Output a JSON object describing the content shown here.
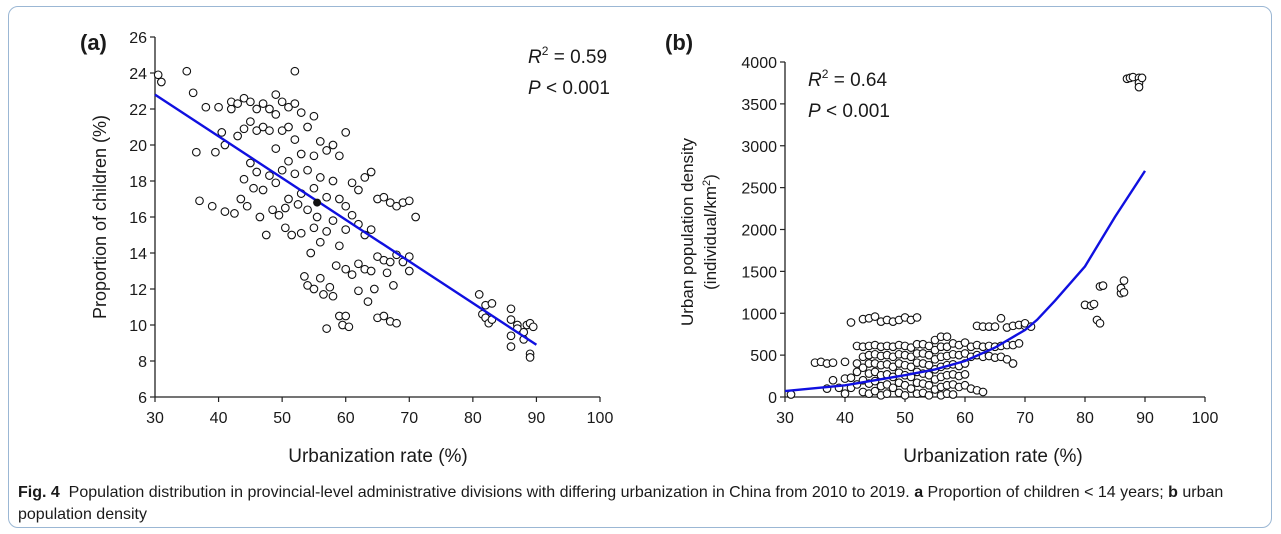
{
  "figure": {
    "caption_label": "Fig. 4",
    "caption_text_1": "Population distribution in provincial-level administrative divisions with differing urbanization in China from 2010 to 2019.",
    "caption_a_label": "a",
    "caption_a_text": "Proportion of children < 14 years;",
    "caption_b_label": "b",
    "caption_b_text": "urban population density"
  },
  "chart_data": [
    {
      "panel_label": "(a)",
      "type": "scatter",
      "xlabel": "Urbanization rate (%)",
      "ylabel": "Proportion of children (%)",
      "xlim": [
        30,
        100
      ],
      "ylim": [
        6,
        26
      ],
      "x_ticks": [
        30,
        40,
        50,
        60,
        70,
        80,
        90,
        100
      ],
      "y_ticks": [
        6,
        8,
        10,
        12,
        14,
        16,
        18,
        20,
        22,
        24,
        26
      ],
      "stat_r2_sym": "R",
      "stat_r2_sup": "2",
      "stat_r2_val": " = 0.59",
      "stat_p_sym": "P",
      "stat_p_val": " < 0.001",
      "fit_color": "#1010e0",
      "fit_line": [
        [
          30,
          22.8
        ],
        [
          90,
          8.9
        ]
      ],
      "highlight_point": [
        55.5,
        16.8
      ],
      "points": [
        [
          30.5,
          23.9
        ],
        [
          31,
          23.5
        ],
        [
          35,
          24.1
        ],
        [
          36,
          22.9
        ],
        [
          36.5,
          19.6
        ],
        [
          37,
          16.9
        ],
        [
          38,
          22.1
        ],
        [
          39,
          16.6
        ],
        [
          39.5,
          19.6
        ],
        [
          40,
          22.1
        ],
        [
          40.5,
          20.7
        ],
        [
          41,
          20.0
        ],
        [
          41,
          16.3
        ],
        [
          42,
          22.0
        ],
        [
          42,
          22.4
        ],
        [
          42.5,
          16.2
        ],
        [
          43,
          22.3
        ],
        [
          43,
          20.5
        ],
        [
          43.5,
          17.0
        ],
        [
          44,
          22.6
        ],
        [
          44,
          20.9
        ],
        [
          44,
          18.1
        ],
        [
          44.5,
          16.6
        ],
        [
          45,
          22.4
        ],
        [
          45,
          21.3
        ],
        [
          45,
          19.0
        ],
        [
          45.5,
          17.6
        ],
        [
          46,
          22.0
        ],
        [
          46,
          20.8
        ],
        [
          46,
          18.5
        ],
        [
          46.5,
          16.0
        ],
        [
          47,
          22.3
        ],
        [
          47,
          21.0
        ],
        [
          47,
          17.5
        ],
        [
          47.5,
          15.0
        ],
        [
          48,
          22.0
        ],
        [
          48,
          20.8
        ],
        [
          48,
          18.3
        ],
        [
          48.5,
          16.4
        ],
        [
          49,
          22.8
        ],
        [
          49,
          21.7
        ],
        [
          49,
          19.8
        ],
        [
          49,
          17.9
        ],
        [
          49.5,
          16.1
        ],
        [
          50,
          22.4
        ],
        [
          50,
          20.8
        ],
        [
          50,
          18.6
        ],
        [
          50.5,
          16.5
        ],
        [
          50.5,
          15.4
        ],
        [
          51,
          22.1
        ],
        [
          51,
          21.0
        ],
        [
          51,
          19.1
        ],
        [
          51,
          17.0
        ],
        [
          51.5,
          15.0
        ],
        [
          52,
          24.1
        ],
        [
          52,
          22.3
        ],
        [
          52,
          20.3
        ],
        [
          52,
          18.4
        ],
        [
          52.5,
          16.7
        ],
        [
          53,
          21.8
        ],
        [
          53,
          19.5
        ],
        [
          53,
          17.3
        ],
        [
          53,
          15.1
        ],
        [
          53.5,
          12.7
        ],
        [
          54,
          21.0
        ],
        [
          54,
          18.6
        ],
        [
          54,
          16.4
        ],
        [
          54,
          12.2
        ],
        [
          54.5,
          14.0
        ],
        [
          55,
          21.6
        ],
        [
          55,
          19.4
        ],
        [
          55,
          17.6
        ],
        [
          55,
          15.4
        ],
        [
          55,
          12.0
        ],
        [
          55.5,
          16.0
        ],
        [
          56,
          20.2
        ],
        [
          56,
          18.2
        ],
        [
          56,
          14.6
        ],
        [
          56,
          12.6
        ],
        [
          56.5,
          11.7
        ],
        [
          57,
          19.7
        ],
        [
          57,
          17.1
        ],
        [
          57,
          15.2
        ],
        [
          57,
          9.8
        ],
        [
          57.5,
          12.1
        ],
        [
          58,
          20.0
        ],
        [
          58,
          18.0
        ],
        [
          58,
          15.8
        ],
        [
          58,
          11.6
        ],
        [
          58.5,
          13.3
        ],
        [
          59,
          19.4
        ],
        [
          59,
          17.0
        ],
        [
          59,
          14.4
        ],
        [
          59,
          10.5
        ],
        [
          59.5,
          10.0
        ],
        [
          60,
          20.7
        ],
        [
          60,
          16.6
        ],
        [
          60,
          15.3
        ],
        [
          60,
          13.1
        ],
        [
          60,
          10.5
        ],
        [
          60.5,
          9.9
        ],
        [
          61,
          17.9
        ],
        [
          61,
          16.1
        ],
        [
          61,
          12.8
        ],
        [
          62,
          17.5
        ],
        [
          62,
          15.6
        ],
        [
          62,
          13.4
        ],
        [
          62,
          11.9
        ],
        [
          63,
          18.2
        ],
        [
          63,
          15.0
        ],
        [
          63,
          13.1
        ],
        [
          63.5,
          11.3
        ],
        [
          64,
          18.5
        ],
        [
          64,
          15.3
        ],
        [
          64,
          13.0
        ],
        [
          64.5,
          12.0
        ],
        [
          65,
          17.0
        ],
        [
          65,
          13.8
        ],
        [
          65,
          10.4
        ],
        [
          66,
          17.1
        ],
        [
          66,
          13.6
        ],
        [
          66,
          10.5
        ],
        [
          66.5,
          12.9
        ],
        [
          67,
          16.8
        ],
        [
          67,
          13.5
        ],
        [
          67,
          10.2
        ],
        [
          67.5,
          12.2
        ],
        [
          68,
          16.6
        ],
        [
          68,
          13.9
        ],
        [
          68,
          10.1
        ],
        [
          69,
          16.8
        ],
        [
          69,
          13.5
        ],
        [
          70,
          16.9
        ],
        [
          70,
          13.8
        ],
        [
          70,
          13.0
        ],
        [
          71,
          16.0
        ],
        [
          81,
          11.7
        ],
        [
          81.5,
          10.6
        ],
        [
          82,
          11.1
        ],
        [
          82,
          10.4
        ],
        [
          82.5,
          10.1
        ],
        [
          83,
          11.2
        ],
        [
          83,
          10.3
        ],
        [
          86,
          10.9
        ],
        [
          86,
          10.3
        ],
        [
          86,
          9.4
        ],
        [
          86,
          8.8
        ],
        [
          87,
          10.0
        ],
        [
          87,
          9.8
        ],
        [
          88,
          9.6
        ],
        [
          88,
          9.2
        ],
        [
          88.5,
          10.0
        ],
        [
          89,
          10.1
        ],
        [
          89,
          8.4
        ],
        [
          89,
          8.2
        ],
        [
          89.5,
          9.9
        ]
      ]
    },
    {
      "panel_label": "(b)",
      "type": "scatter",
      "xlabel": "Urbanization rate (%)",
      "ylabel_line1": "Urban population density",
      "ylabel_line2_pre": "(individual/km",
      "ylabel_line2_sup": "2",
      "ylabel_line2_post": ")",
      "xlim": [
        30,
        100
      ],
      "ylim": [
        0,
        4000
      ],
      "x_ticks": [
        30,
        40,
        50,
        60,
        70,
        80,
        90,
        100
      ],
      "y_ticks": [
        0,
        500,
        1000,
        1500,
        2000,
        2500,
        3000,
        3500,
        4000
      ],
      "stat_r2_sym": "R",
      "stat_r2_sup": "2",
      "stat_r2_val": " = 0.64",
      "stat_p_sym": "P",
      "stat_p_val": " < 0.001",
      "fit_color": "#1010e0",
      "fit_line": [
        [
          30,
          70
        ],
        [
          40,
          140
        ],
        [
          50,
          260
        ],
        [
          55,
          330
        ],
        [
          60,
          430
        ],
        [
          65,
          590
        ],
        [
          70,
          800
        ],
        [
          72,
          920
        ],
        [
          75,
          1150
        ],
        [
          80,
          1560
        ],
        [
          85,
          2150
        ],
        [
          90,
          2700
        ]
      ],
      "points": [
        [
          31,
          30
        ],
        [
          35,
          410
        ],
        [
          36,
          420
        ],
        [
          37,
          100
        ],
        [
          37,
          400
        ],
        [
          38,
          200
        ],
        [
          38,
          410
        ],
        [
          39,
          110
        ],
        [
          40,
          220
        ],
        [
          40,
          420
        ],
        [
          40,
          40
        ],
        [
          41,
          890
        ],
        [
          41,
          230
        ],
        [
          41,
          110
        ],
        [
          42,
          610
        ],
        [
          42,
          400
        ],
        [
          42,
          300
        ],
        [
          42,
          150
        ],
        [
          43,
          930
        ],
        [
          43,
          600
        ],
        [
          43,
          480
        ],
        [
          43,
          350
        ],
        [
          43,
          200
        ],
        [
          43,
          60
        ],
        [
          44,
          940
        ],
        [
          44,
          610
        ],
        [
          44,
          500
        ],
        [
          44,
          400
        ],
        [
          44,
          280
        ],
        [
          44,
          160
        ],
        [
          44,
          40
        ],
        [
          45,
          960
        ],
        [
          45,
          620
        ],
        [
          45,
          510
        ],
        [
          45,
          400
        ],
        [
          45,
          300
        ],
        [
          45,
          190
        ],
        [
          45,
          70
        ],
        [
          46,
          900
        ],
        [
          46,
          600
        ],
        [
          46,
          490
        ],
        [
          46,
          380
        ],
        [
          46,
          260
        ],
        [
          46,
          130
        ],
        [
          46,
          20
        ],
        [
          47,
          920
        ],
        [
          47,
          610
        ],
        [
          47,
          500
        ],
        [
          47,
          390
        ],
        [
          47,
          270
        ],
        [
          47,
          150
        ],
        [
          47,
          40
        ],
        [
          48,
          900
        ],
        [
          48,
          600
        ],
        [
          48,
          480
        ],
        [
          48,
          360
        ],
        [
          48,
          240
        ],
        [
          48,
          110
        ],
        [
          49,
          920
        ],
        [
          49,
          620
        ],
        [
          49,
          510
        ],
        [
          49,
          400
        ],
        [
          49,
          290
        ],
        [
          49,
          170
        ],
        [
          49,
          50
        ],
        [
          50,
          950
        ],
        [
          50,
          610
        ],
        [
          50,
          500
        ],
        [
          50,
          380
        ],
        [
          50,
          260
        ],
        [
          50,
          140
        ],
        [
          50,
          20
        ],
        [
          51,
          920
        ],
        [
          51,
          590
        ],
        [
          51,
          480
        ],
        [
          51,
          360
        ],
        [
          51,
          240
        ],
        [
          51,
          100
        ],
        [
          52,
          950
        ],
        [
          52,
          630
        ],
        [
          52,
          520
        ],
        [
          52,
          410
        ],
        [
          52,
          300
        ],
        [
          52,
          170
        ],
        [
          52,
          40
        ],
        [
          53,
          630
        ],
        [
          53,
          520
        ],
        [
          53,
          400
        ],
        [
          53,
          280
        ],
        [
          53,
          160
        ],
        [
          53,
          50
        ],
        [
          54,
          610
        ],
        [
          54,
          500
        ],
        [
          54,
          380
        ],
        [
          54,
          260
        ],
        [
          54,
          140
        ],
        [
          54,
          20
        ],
        [
          55,
          680
        ],
        [
          55,
          560
        ],
        [
          55,
          450
        ],
        [
          55,
          330
        ],
        [
          55,
          210
        ],
        [
          55,
          90
        ],
        [
          56,
          720
        ],
        [
          56,
          600
        ],
        [
          56,
          480
        ],
        [
          56,
          360
        ],
        [
          56,
          240
        ],
        [
          56,
          120
        ],
        [
          56,
          20
        ],
        [
          57,
          720
        ],
        [
          57,
          600
        ],
        [
          57,
          490
        ],
        [
          57,
          380
        ],
        [
          57,
          260
        ],
        [
          57,
          140
        ],
        [
          57,
          40
        ],
        [
          58,
          640
        ],
        [
          58,
          510
        ],
        [
          58,
          390
        ],
        [
          58,
          270
        ],
        [
          58,
          150
        ],
        [
          58,
          30
        ],
        [
          59,
          620
        ],
        [
          59,
          500
        ],
        [
          59,
          370
        ],
        [
          59,
          250
        ],
        [
          59,
          120
        ],
        [
          60,
          650
        ],
        [
          60,
          520
        ],
        [
          60,
          400
        ],
        [
          60,
          270
        ],
        [
          60,
          140
        ],
        [
          61,
          600
        ],
        [
          61,
          480
        ],
        [
          61,
          100
        ],
        [
          62,
          850
        ],
        [
          62,
          620
        ],
        [
          62,
          500
        ],
        [
          62,
          80
        ],
        [
          63,
          840
        ],
        [
          63,
          600
        ],
        [
          63,
          480
        ],
        [
          63,
          60
        ],
        [
          64,
          840
        ],
        [
          64,
          610
        ],
        [
          64,
          490
        ],
        [
          65,
          840
        ],
        [
          65,
          600
        ],
        [
          65,
          470
        ],
        [
          66,
          940
        ],
        [
          66,
          610
        ],
        [
          66,
          480
        ],
        [
          67,
          830
        ],
        [
          67,
          620
        ],
        [
          67,
          450
        ],
        [
          68,
          850
        ],
        [
          68,
          620
        ],
        [
          68,
          400
        ],
        [
          69,
          860
        ],
        [
          69,
          640
        ],
        [
          70,
          850
        ],
        [
          70,
          880
        ],
        [
          71,
          840
        ],
        [
          80,
          1100
        ],
        [
          81,
          1090
        ],
        [
          81.5,
          1110
        ],
        [
          82,
          920
        ],
        [
          82.5,
          880
        ],
        [
          82.5,
          1320
        ],
        [
          83,
          1330
        ],
        [
          86,
          1240
        ],
        [
          86,
          1300
        ],
        [
          86.5,
          1390
        ],
        [
          86.5,
          1250
        ],
        [
          87,
          3800
        ],
        [
          87.5,
          3810
        ],
        [
          88,
          3820
        ],
        [
          89,
          3810
        ],
        [
          89,
          3750
        ],
        [
          89,
          3700
        ],
        [
          89.5,
          3810
        ]
      ]
    }
  ]
}
